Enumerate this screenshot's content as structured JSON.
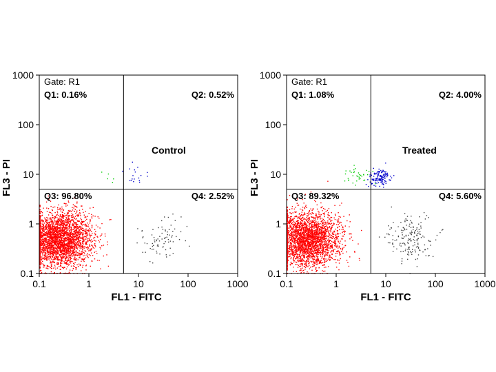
{
  "chart_data": [
    {
      "type": "scatter",
      "title": "Control",
      "gate": "Gate: R1",
      "xlabel": "FL1  - FITC",
      "ylabel": "FL3  - PI",
      "xscale": "log",
      "yscale": "log",
      "xlim": [
        0.1,
        1000
      ],
      "ylim": [
        0.1,
        1000
      ],
      "xticks": [
        "0.1",
        "1",
        "10",
        "100",
        "1000"
      ],
      "yticks": [
        "0.1",
        "1",
        "10",
        "100",
        "1000"
      ],
      "quadrant_gate": {
        "x": 5,
        "y": 5
      },
      "quadrants": {
        "Q1": "Q1: 0.16%",
        "Q2": "Q2: 0.52%",
        "Q3": "Q3: 96.80%",
        "Q4": "Q4: 2.52%"
      },
      "quadrant_colors": {
        "Q1": "#00cc00",
        "Q2": "#0000cc",
        "Q3": "#ff0000",
        "Q4": "#444444"
      },
      "populations": [
        {
          "quadrant": "Q3",
          "x_center": 0.25,
          "y_center": 0.5,
          "x_log_spread": 0.33,
          "y_log_spread": 0.28,
          "count": 3000
        },
        {
          "quadrant": "Q4",
          "x_center": 30,
          "y_center": 0.5,
          "x_log_spread": 0.25,
          "y_log_spread": 0.22,
          "count": 80
        },
        {
          "quadrant": "Q2",
          "x_center": 8,
          "y_center": 9,
          "x_log_spread": 0.12,
          "y_log_spread": 0.12,
          "count": 18
        },
        {
          "quadrant": "Q1",
          "x_center": 2.5,
          "y_center": 8,
          "x_log_spread": 0.15,
          "y_log_spread": 0.08,
          "count": 5
        }
      ]
    },
    {
      "type": "scatter",
      "title": "Treated",
      "gate": "Gate: R1",
      "xlabel": "FL1  - FITC",
      "ylabel": "FL3  - PI",
      "xscale": "log",
      "yscale": "log",
      "xlim": [
        0.1,
        1000
      ],
      "ylim": [
        0.1,
        1000
      ],
      "xticks": [
        "0.1",
        "1",
        "10",
        "100",
        "1000"
      ],
      "yticks": [
        "0.1",
        "1",
        "10",
        "100",
        "1000"
      ],
      "quadrant_gate": {
        "x": 5,
        "y": 5
      },
      "quadrants": {
        "Q1": "Q1: 1.08%",
        "Q2": "Q2: 4.00%",
        "Q3": "Q3: 89.32%",
        "Q4": "Q4: 5.60%"
      },
      "quadrant_colors": {
        "Q1": "#00cc00",
        "Q2": "#0000cc",
        "Q3": "#ff0000",
        "Q4": "#444444"
      },
      "populations": [
        {
          "quadrant": "Q3",
          "x_center": 0.25,
          "y_center": 0.5,
          "x_log_spread": 0.33,
          "y_log_spread": 0.28,
          "count": 2800
        },
        {
          "quadrant": "Q4",
          "x_center": 30,
          "y_center": 0.5,
          "x_log_spread": 0.25,
          "y_log_spread": 0.25,
          "count": 180
        },
        {
          "quadrant": "Q2",
          "x_center": 7.5,
          "y_center": 9,
          "x_log_spread": 0.1,
          "y_log_spread": 0.1,
          "count": 130
        },
        {
          "quadrant": "Q1",
          "x_center": 2.5,
          "y_center": 10,
          "x_log_spread": 0.15,
          "y_log_spread": 0.1,
          "count": 35
        }
      ]
    }
  ]
}
